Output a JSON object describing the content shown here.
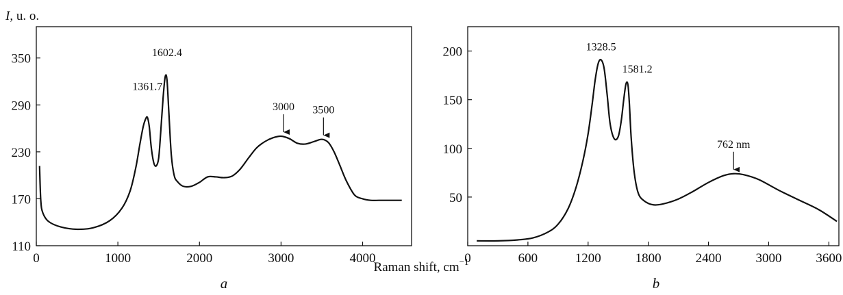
{
  "figure": {
    "xlabel_text": "Raman shift, cm",
    "xlabel_superscript": "−1"
  },
  "chart_data": [
    {
      "type": "line",
      "panel_label": "a",
      "ylabel_symbol": "I",
      "ylabel_unit": ", u. o.",
      "xlim": [
        0,
        4600
      ],
      "ylim": [
        110,
        390
      ],
      "xticks": [
        0,
        1000,
        2000,
        3000,
        4000
      ],
      "yticks": [
        110,
        170,
        230,
        290,
        350
      ],
      "grid": false,
      "series": [
        {
          "x": [
            40,
            55,
            80,
            150,
            300,
            500,
            700,
            900,
            1050,
            1150,
            1220,
            1270,
            1310,
            1340,
            1362,
            1385,
            1410,
            1440,
            1470,
            1500,
            1525,
            1555,
            1580,
            1602,
            1625,
            1655,
            1690,
            1730,
            1800,
            1900,
            2000,
            2100,
            2200,
            2300,
            2400,
            2500,
            2600,
            2700,
            2800,
            2900,
            3000,
            3100,
            3200,
            3300,
            3400,
            3500,
            3580,
            3650,
            3720,
            3800,
            3900,
            4000,
            4100,
            4200,
            4300,
            4480
          ],
          "y": [
            212,
            168,
            152,
            141,
            134,
            131,
            133,
            142,
            158,
            180,
            210,
            240,
            262,
            272,
            274,
            262,
            235,
            216,
            212,
            222,
            255,
            300,
            326,
            322,
            280,
            226,
            200,
            192,
            186,
            186,
            191,
            198,
            198,
            197,
            199,
            208,
            222,
            235,
            243,
            248,
            250,
            247,
            241,
            240,
            243,
            246,
            242,
            230,
            213,
            193,
            175,
            170,
            168,
            168,
            168,
            168
          ]
        }
      ],
      "annotations": [
        {
          "text": "1361.7",
          "x": 1362,
          "y": 274,
          "arrow": false
        },
        {
          "text": "1602.4",
          "x": 1602,
          "y": 326,
          "arrow": false
        },
        {
          "text": "3000",
          "x": 3030,
          "y": 250,
          "arrow": true
        },
        {
          "text": "3500",
          "x": 3520,
          "y": 246,
          "arrow": true
        }
      ]
    },
    {
      "type": "line",
      "panel_label": "b",
      "xlim": [
        0,
        3700
      ],
      "ylim": [
        0,
        225
      ],
      "xticks": [
        0,
        600,
        1200,
        1800,
        2400,
        3000,
        3600
      ],
      "yticks": [
        50,
        100,
        150,
        200
      ],
      "grid": false,
      "series": [
        {
          "x": [
            90,
            300,
            500,
            650,
            800,
            900,
            1000,
            1080,
            1150,
            1200,
            1240,
            1270,
            1300,
            1329,
            1360,
            1390,
            1420,
            1460,
            1500,
            1530,
            1555,
            1575,
            1590,
            1600,
            1612,
            1630,
            1660,
            1700,
            1760,
            1850,
            1950,
            2100,
            2250,
            2400,
            2550,
            2650,
            2750,
            2900,
            3100,
            3300,
            3500,
            3680
          ],
          "y": [
            5,
            5,
            6,
            8,
            14,
            22,
            38,
            60,
            88,
            115,
            145,
            170,
            187,
            191,
            182,
            155,
            125,
            110,
            112,
            128,
            150,
            165,
            168,
            163,
            145,
            110,
            75,
            54,
            46,
            42,
            43,
            48,
            56,
            65,
            72,
            74,
            73,
            68,
            57,
            47,
            37,
            25
          ]
        }
      ],
      "annotations": [
        {
          "text": "1328.5",
          "x": 1329,
          "y": 191,
          "arrow": false
        },
        {
          "text": "1581.2",
          "x": 1581,
          "y": 168,
          "arrow": false
        },
        {
          "text": "762 nm",
          "x": 2650,
          "y": 74,
          "arrow": true
        }
      ]
    }
  ]
}
